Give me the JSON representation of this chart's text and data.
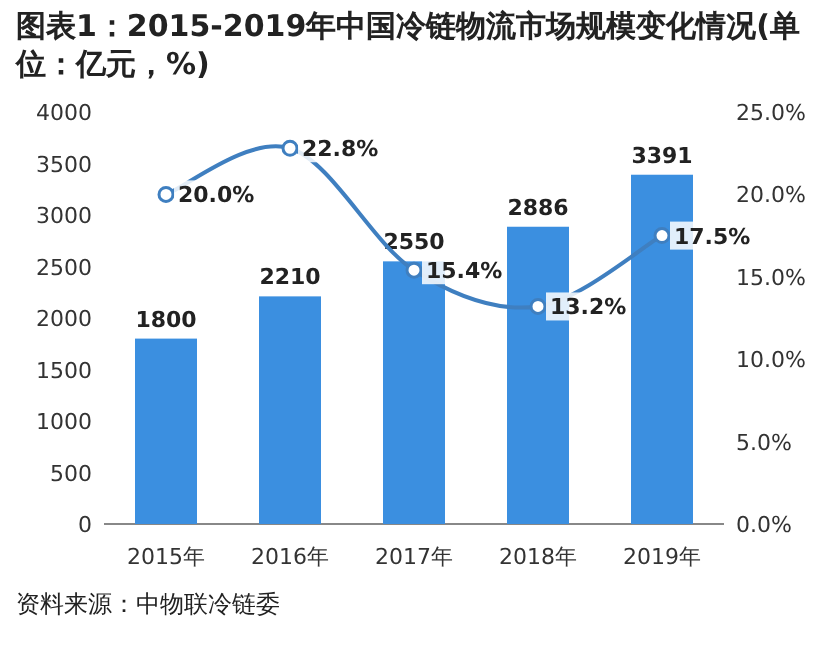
{
  "chart_data": {
    "type": "bar",
    "title": "图表1：2015-2019年中国冷链物流市场规模变化情况(单位：亿元，%)",
    "categories": [
      "2015年",
      "2016年",
      "2017年",
      "2018年",
      "2019年"
    ],
    "series": [
      {
        "color": "#3b8fe0",
        "values": [
          1800,
          2210,
          2550,
          2886,
          3391
        ],
        "value_labels": [
          "1800",
          "2210",
          "2550",
          "2886",
          "3391"
        ]
      },
      {
        "type": "line",
        "axis": "y2",
        "color": "#3f7fc0",
        "values": [
          20.0,
          22.8,
          15.4,
          13.2,
          17.5
        ],
        "value_labels": [
          "20.0%",
          "22.8%",
          "15.4%",
          "13.2%",
          "17.5%"
        ],
        "marker": "circle"
      }
    ],
    "ylim": [
      0,
      4000
    ],
    "yticks": [
      0,
      500,
      1000,
      1500,
      2000,
      2500,
      3000,
      3500,
      4000
    ],
    "y2lim": [
      0,
      25
    ],
    "y2ticks": [
      {
        "value": 0,
        "label": "0.0%"
      },
      {
        "value": 5,
        "label": "5.0%"
      },
      {
        "value": 10,
        "label": "10.0%"
      },
      {
        "value": 15,
        "label": "15.0%"
      },
      {
        "value": 20,
        "label": "20.0%"
      },
      {
        "value": 25,
        "label": "25.0%"
      }
    ],
    "grid": false,
    "annotations": [
      "资料来源：中物联冷链委"
    ]
  }
}
